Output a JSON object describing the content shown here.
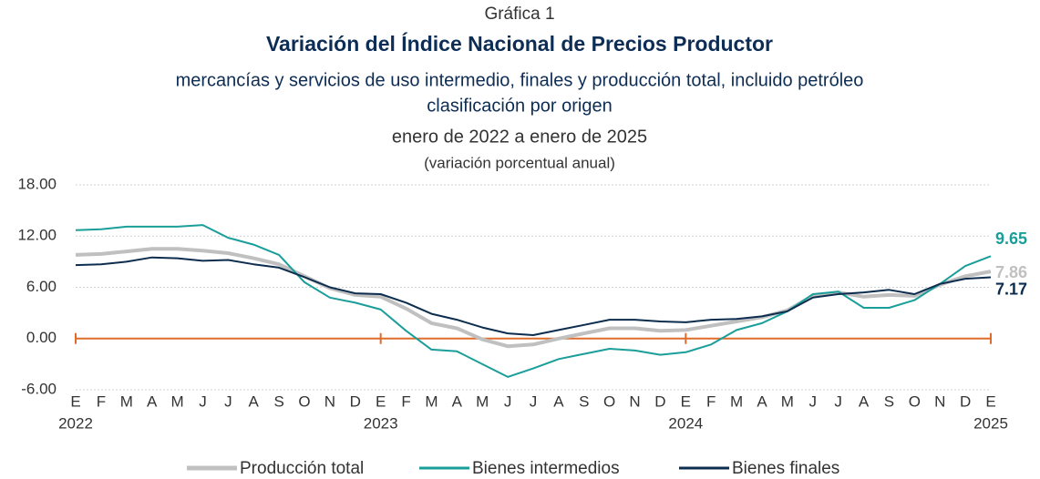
{
  "chart_data": {
    "type": "line",
    "kicker": "Gráfica 1",
    "title": "Variación del Índice Nacional de Precios Productor",
    "subtitle": [
      "mercancías y servicios de uso intermedio, finales y producción total, incluido petróleo",
      "clasificación por origen"
    ],
    "period": "enero de 2022 a enero de 2025",
    "unit_note": "(variación porcentual anual)",
    "categories": [
      "E",
      "F",
      "M",
      "A",
      "M",
      "J",
      "J",
      "A",
      "S",
      "O",
      "N",
      "D",
      "E",
      "F",
      "M",
      "A",
      "M",
      "J",
      "J",
      "A",
      "S",
      "O",
      "N",
      "D",
      "E",
      "F",
      "M",
      "A",
      "M",
      "J",
      "J",
      "A",
      "S",
      "O",
      "N",
      "D",
      "E"
    ],
    "years": [
      "2022",
      "2023",
      "2024",
      "2025"
    ],
    "ylim": [
      -6,
      18
    ],
    "yticks": [
      {
        "value": 18,
        "label": "18.00"
      },
      {
        "value": 12,
        "label": "12.00"
      },
      {
        "value": 6,
        "label": "6.00"
      },
      {
        "value": 0,
        "label": "0.00"
      },
      {
        "value": -6,
        "label": "-6.00"
      }
    ],
    "zero_line_color": "#e06c2c",
    "legend": "bottom",
    "series": [
      {
        "name": "Producción total",
        "color": "#c0c0c0",
        "width": 4,
        "end_label": "7.86",
        "values": [
          9.8,
          9.9,
          10.2,
          10.5,
          10.5,
          10.3,
          10.0,
          9.4,
          8.7,
          7.3,
          5.9,
          5.1,
          4.9,
          3.5,
          1.8,
          1.2,
          -0.1,
          -0.9,
          -0.7,
          0.0,
          0.6,
          1.2,
          1.2,
          0.9,
          1.0,
          1.5,
          2.0,
          2.5,
          3.3,
          5.0,
          5.4,
          4.9,
          5.1,
          5.0,
          6.3,
          7.3,
          7.86
        ]
      },
      {
        "name": "Bienes intermedios",
        "color": "#1a9e9a",
        "width": 2,
        "end_label": "9.65",
        "values": [
          12.7,
          12.8,
          13.1,
          13.1,
          13.1,
          13.3,
          11.8,
          11.0,
          9.8,
          6.6,
          4.8,
          4.2,
          3.4,
          0.9,
          -1.3,
          -1.5,
          -3.0,
          -4.5,
          -3.5,
          -2.4,
          -1.8,
          -1.2,
          -1.4,
          -1.9,
          -1.6,
          -0.7,
          1.0,
          1.8,
          3.2,
          5.2,
          5.5,
          3.6,
          3.6,
          4.5,
          6.4,
          8.5,
          9.65
        ]
      },
      {
        "name": "Bienes finales",
        "color": "#0d2d4f",
        "width": 2,
        "end_label": "7.17",
        "values": [
          8.6,
          8.7,
          9.0,
          9.5,
          9.4,
          9.1,
          9.2,
          8.7,
          8.3,
          7.2,
          6.0,
          5.3,
          5.2,
          4.2,
          2.9,
          2.2,
          1.3,
          0.6,
          0.4,
          1.0,
          1.6,
          2.2,
          2.2,
          2.0,
          1.9,
          2.2,
          2.3,
          2.6,
          3.2,
          4.8,
          5.2,
          5.4,
          5.7,
          5.2,
          6.4,
          7.0,
          7.17
        ]
      }
    ]
  }
}
